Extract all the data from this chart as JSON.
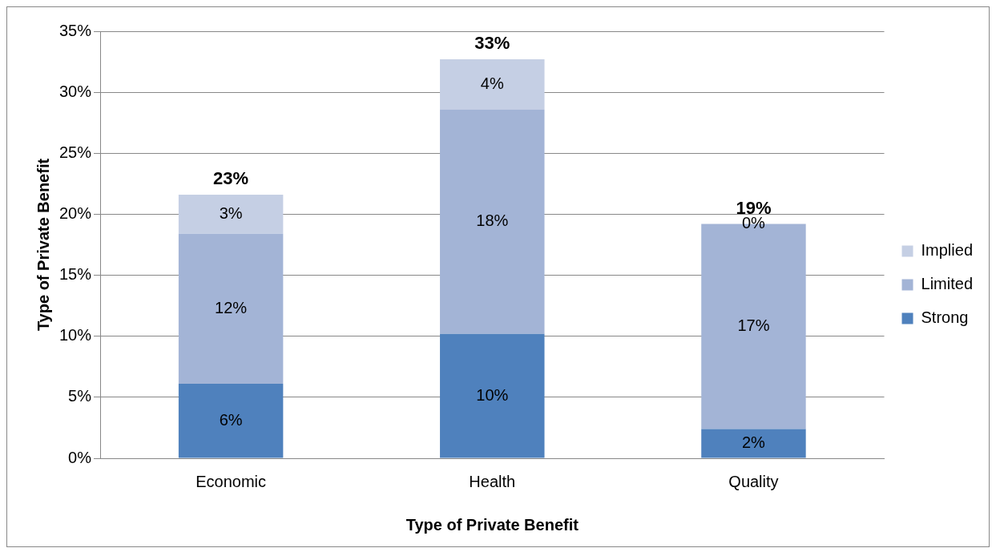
{
  "chart_data": {
    "type": "bar",
    "stacked": true,
    "xlabel": "Type of Private Benefit",
    "ylabel": "Type of Private Benefit",
    "categories": [
      "Economic",
      "Health",
      "Quality"
    ],
    "series": [
      {
        "name": "Strong",
        "color": "#4f81bd",
        "values": [
          6.1,
          10.2,
          2.4
        ],
        "value_labels": [
          "6%",
          "10%",
          "2%"
        ]
      },
      {
        "name": "Limited",
        "color": "#a3b4d6",
        "values": [
          12.3,
          18.4,
          16.8
        ],
        "value_labels": [
          "12%",
          "18%",
          "17%"
        ]
      },
      {
        "name": "Implied",
        "color": "#c5cfe4",
        "values": [
          3.2,
          4.1,
          0
        ],
        "value_labels": [
          "3%",
          "4%",
          "0%"
        ]
      }
    ],
    "totals": [
      "23%",
      "33%",
      "19%"
    ],
    "ylim": [
      0,
      35
    ],
    "yticks": [
      {
        "value": 0,
        "label": "0%"
      },
      {
        "value": 5,
        "label": "5%"
      },
      {
        "value": 10,
        "label": "10%"
      },
      {
        "value": 15,
        "label": "15%"
      },
      {
        "value": 20,
        "label": "20%"
      },
      {
        "value": 25,
        "label": "25%"
      },
      {
        "value": 30,
        "label": "30%"
      },
      {
        "value": 35,
        "label": "35%"
      }
    ],
    "grid": "y",
    "legend": "right"
  }
}
